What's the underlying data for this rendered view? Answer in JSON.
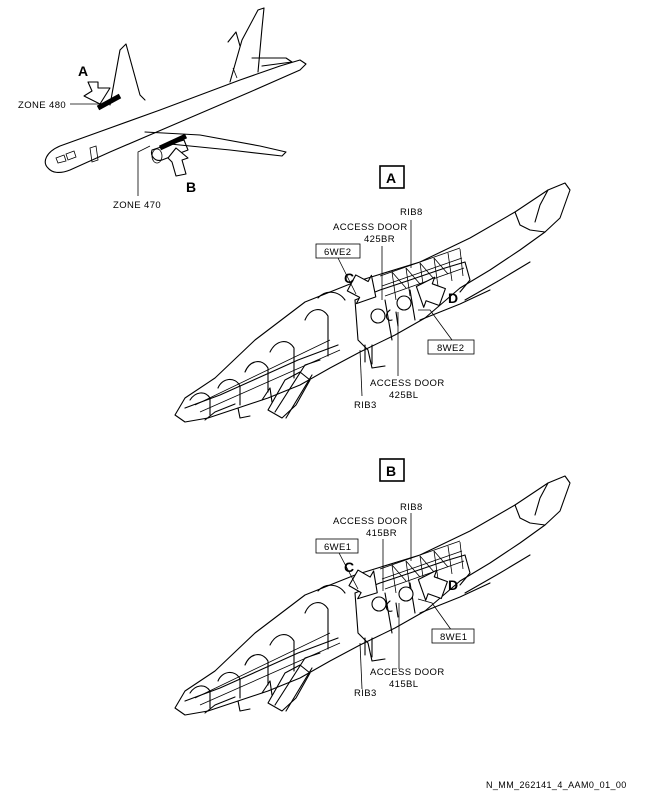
{
  "overview": {
    "zone_top_label": "ZONE 480",
    "zone_bottom_label": "ZONE 470",
    "callout_a": "A",
    "callout_b": "B"
  },
  "view_a": {
    "view_letter": "A",
    "access_door_top_line1": "ACCESS DOOR",
    "access_door_top_line2": "425BR",
    "access_door_bottom_line1": "ACCESS DOOR",
    "access_door_bottom_line2": "425BL",
    "rib_top": "RIB8",
    "rib_bottom": "RIB3",
    "left_box": "6WE2",
    "right_box": "8WE2",
    "callout_c": "C",
    "callout_d": "D"
  },
  "view_b": {
    "view_letter": "B",
    "access_door_top_line1": "ACCESS DOOR",
    "access_door_top_line2": "415BR",
    "access_door_bottom_line1": "ACCESS DOOR",
    "access_door_bottom_line2": "415BL",
    "rib_top": "RIB8",
    "rib_bottom": "RIB3",
    "left_box": "6WE1",
    "right_box": "8WE1",
    "callout_c": "C",
    "callout_d": "D"
  },
  "footer": {
    "reference": "N_MM_262141_4_AAM0_01_00"
  }
}
